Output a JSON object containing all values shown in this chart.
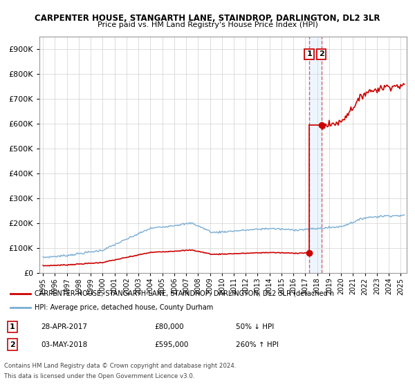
{
  "title1": "CARPENTER HOUSE, STANGARTH LANE, STAINDROP, DARLINGTON, DL2 3LR",
  "title2": "Price paid vs. HM Land Registry's House Price Index (HPI)",
  "legend1": "CARPENTER HOUSE, STANGARTH LANE, STAINDROP, DARLINGTON, DL2 3LR (detached h",
  "legend2": "HPI: Average price, detached house, County Durham",
  "footer1": "Contains HM Land Registry data © Crown copyright and database right 2024.",
  "footer2": "This data is licensed under the Open Government Licence v3.0.",
  "transaction1_date": "28-APR-2017",
  "transaction1_price": "£80,000",
  "transaction1_hpi": "50% ↓ HPI",
  "transaction2_date": "03-MAY-2018",
  "transaction2_price": "£595,000",
  "transaction2_hpi": "260% ↑ HPI",
  "hpi_color": "#7aadd4",
  "price_color": "#cc0000",
  "transaction1_x": 2017.33,
  "transaction1_y": 80000,
  "transaction2_x": 2018.34,
  "transaction2_y": 595000,
  "ylim": [
    0,
    950000
  ],
  "xlim_min": 1994.7,
  "xlim_max": 2025.5
}
